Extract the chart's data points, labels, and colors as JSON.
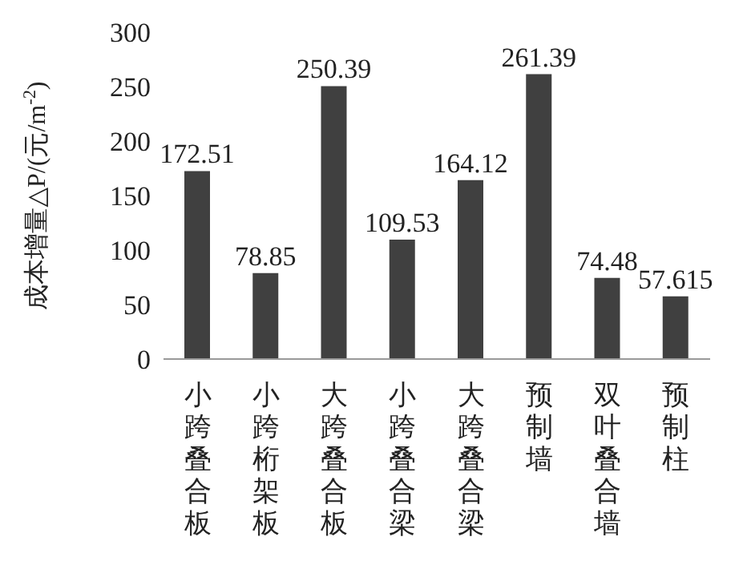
{
  "chart_data": {
    "type": "bar",
    "categories": [
      "小跨叠合板",
      "小跨桁架板",
      "大跨叠合板",
      "小跨叠合梁",
      "大跨叠合梁",
      "预制墙",
      "双叶叠合墙",
      "预制柱"
    ],
    "values": [
      172.51,
      78.85,
      250.39,
      109.53,
      164.12,
      261.39,
      74.48,
      57.615
    ],
    "color": "#404040",
    "ylabel": "成本增量△P/(元/m$^{-2}$)",
    "ylim": [
      0,
      300
    ],
    "yticks": [
      0,
      50,
      100,
      150,
      200,
      250,
      300
    ],
    "data_labels": true,
    "grid": false,
    "legend": false
  }
}
